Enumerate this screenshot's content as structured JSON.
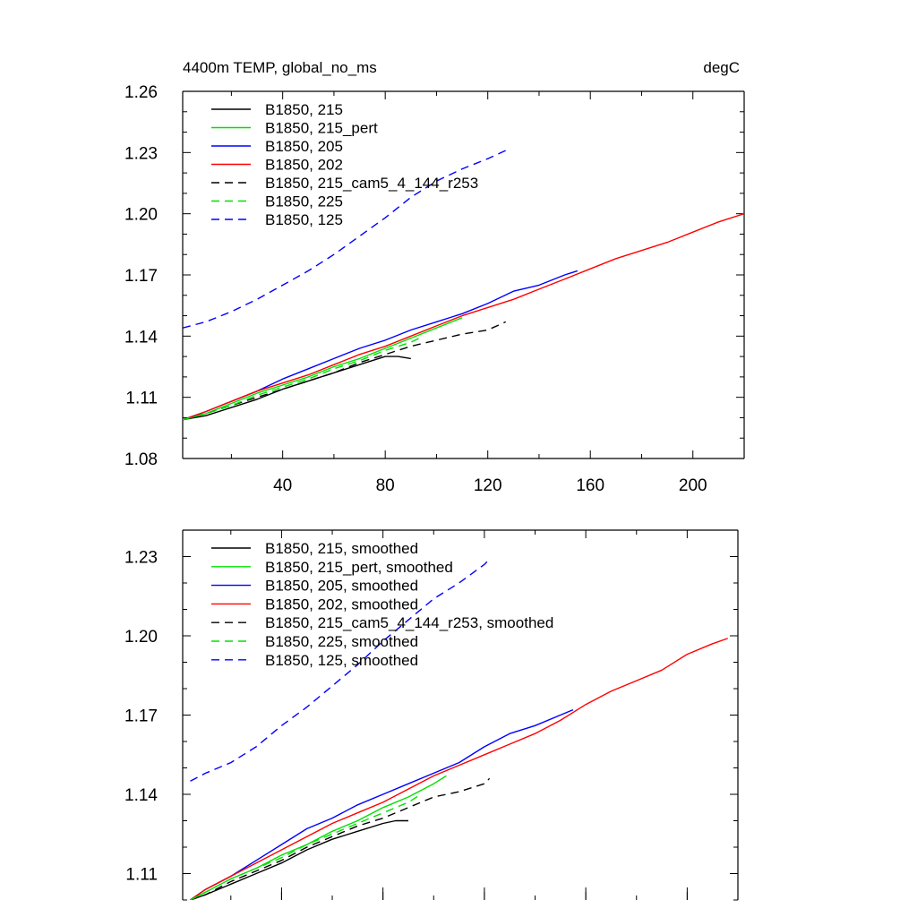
{
  "chart_data": [
    {
      "type": "line",
      "left_title": "4400m TEMP, global_no_ms",
      "right_title": "degC",
      "xlim": [
        1,
        220
      ],
      "ylim": [
        1.08,
        1.26
      ],
      "xticks": [
        40,
        80,
        120,
        160,
        200
      ],
      "xtick_labels": [
        "40",
        "80",
        "120",
        "160",
        "200"
      ],
      "yticks": [
        1.08,
        1.11,
        1.14,
        1.17,
        1.2,
        1.23,
        1.26
      ],
      "ytick_labels": [
        "1.08",
        "1.11",
        "1.14",
        "1.17",
        "1.20",
        "1.23",
        "1.26"
      ],
      "legend_position": "top-left",
      "series": [
        {
          "name": "B1850, 215",
          "color": "#000000",
          "dash": "solid",
          "x": [
            1,
            10,
            20,
            30,
            40,
            50,
            60,
            70,
            80,
            85,
            90
          ],
          "y": [
            1.099,
            1.101,
            1.105,
            1.109,
            1.114,
            1.118,
            1.122,
            1.126,
            1.13,
            1.13,
            1.129
          ]
        },
        {
          "name": "B1850, 215_pert",
          "color": "#00e000",
          "dash": "solid",
          "x": [
            1,
            10,
            20,
            30,
            40,
            50,
            60,
            70,
            80,
            90,
            100,
            110
          ],
          "y": [
            1.099,
            1.102,
            1.107,
            1.112,
            1.116,
            1.12,
            1.125,
            1.129,
            1.134,
            1.139,
            1.144,
            1.149
          ]
        },
        {
          "name": "B1850, 205",
          "color": "#0000ff",
          "dash": "solid",
          "x": [
            1,
            10,
            20,
            30,
            40,
            50,
            60,
            70,
            80,
            90,
            100,
            110,
            120,
            130,
            140,
            150,
            155
          ],
          "y": [
            1.099,
            1.103,
            1.108,
            1.113,
            1.119,
            1.124,
            1.129,
            1.134,
            1.138,
            1.143,
            1.147,
            1.151,
            1.156,
            1.162,
            1.165,
            1.17,
            1.172
          ]
        },
        {
          "name": "B1850, 202",
          "color": "#ff0000",
          "dash": "solid",
          "x": [
            1,
            10,
            20,
            30,
            40,
            50,
            60,
            70,
            80,
            90,
            100,
            110,
            120,
            130,
            140,
            150,
            160,
            170,
            180,
            190,
            200,
            210,
            220
          ],
          "y": [
            1.099,
            1.103,
            1.108,
            1.113,
            1.117,
            1.121,
            1.126,
            1.131,
            1.135,
            1.14,
            1.145,
            1.15,
            1.154,
            1.158,
            1.163,
            1.168,
            1.173,
            1.178,
            1.182,
            1.186,
            1.191,
            1.196,
            1.2
          ]
        },
        {
          "name": "B1850, 215_cam5_4_144_r253",
          "color": "#000000",
          "dash": "dashed",
          "x": [
            1,
            10,
            20,
            30,
            40,
            50,
            60,
            70,
            80,
            90,
            100,
            110,
            120,
            127
          ],
          "y": [
            1.099,
            1.102,
            1.106,
            1.11,
            1.114,
            1.118,
            1.122,
            1.127,
            1.131,
            1.135,
            1.138,
            1.141,
            1.143,
            1.147
          ]
        },
        {
          "name": "B1850, 225",
          "color": "#00e000",
          "dash": "dashed",
          "x": [
            1,
            10,
            20,
            30,
            40,
            50,
            60,
            70,
            80,
            90,
            95
          ],
          "y": [
            1.099,
            1.102,
            1.106,
            1.111,
            1.115,
            1.119,
            1.124,
            1.128,
            1.133,
            1.137,
            1.14
          ]
        },
        {
          "name": "B1850, 125",
          "color": "#0000ff",
          "dash": "dashed",
          "x": [
            1,
            10,
            20,
            30,
            40,
            50,
            60,
            70,
            80,
            90,
            100,
            110,
            120,
            127
          ],
          "y": [
            1.144,
            1.147,
            1.152,
            1.158,
            1.165,
            1.172,
            1.18,
            1.189,
            1.198,
            1.208,
            1.216,
            1.222,
            1.227,
            1.231
          ]
        }
      ]
    },
    {
      "type": "line",
      "xlim": [
        1,
        220
      ],
      "ylim": [
        1.1,
        1.24
      ],
      "xticks": [
        40,
        80,
        120,
        160,
        200
      ],
      "xtick_labels": [],
      "yticks": [
        1.11,
        1.14,
        1.17,
        1.2,
        1.23
      ],
      "ytick_labels": [
        "1.11",
        "1.14",
        "1.17",
        "1.20",
        "1.23"
      ],
      "legend_position": "top-left",
      "series": [
        {
          "name": "B1850, 215, smoothed",
          "color": "#000000",
          "dash": "solid",
          "x": [
            4,
            10,
            20,
            30,
            40,
            50,
            60,
            70,
            80,
            85,
            90
          ],
          "y": [
            1.1,
            1.102,
            1.106,
            1.11,
            1.114,
            1.119,
            1.123,
            1.126,
            1.129,
            1.13,
            1.13
          ]
        },
        {
          "name": "B1850, 215_pert, smoothed",
          "color": "#00e000",
          "dash": "solid",
          "x": [
            4,
            10,
            20,
            30,
            40,
            50,
            60,
            70,
            80,
            90,
            100,
            105
          ],
          "y": [
            1.1,
            1.103,
            1.108,
            1.112,
            1.117,
            1.121,
            1.126,
            1.13,
            1.135,
            1.139,
            1.144,
            1.147
          ]
        },
        {
          "name": "B1850, 205, smoothed",
          "color": "#0000ff",
          "dash": "solid",
          "x": [
            4,
            10,
            20,
            30,
            40,
            50,
            60,
            70,
            80,
            90,
            100,
            110,
            120,
            130,
            140,
            150,
            155
          ],
          "y": [
            1.1,
            1.104,
            1.109,
            1.115,
            1.121,
            1.127,
            1.131,
            1.136,
            1.14,
            1.144,
            1.148,
            1.152,
            1.158,
            1.163,
            1.166,
            1.17,
            1.172
          ]
        },
        {
          "name": "B1850, 202, smoothed",
          "color": "#ff0000",
          "dash": "solid",
          "x": [
            4,
            10,
            20,
            30,
            40,
            50,
            60,
            70,
            80,
            90,
            100,
            110,
            120,
            130,
            140,
            150,
            160,
            170,
            180,
            190,
            200,
            210,
            216
          ],
          "y": [
            1.1,
            1.104,
            1.109,
            1.114,
            1.119,
            1.124,
            1.129,
            1.133,
            1.137,
            1.142,
            1.147,
            1.151,
            1.155,
            1.159,
            1.163,
            1.168,
            1.174,
            1.179,
            1.183,
            1.187,
            1.193,
            1.197,
            1.199
          ]
        },
        {
          "name": "B1850, 215_cam5_4_144_r253, smoothed",
          "color": "#000000",
          "dash": "dashed",
          "x": [
            4,
            10,
            20,
            30,
            40,
            50,
            60,
            70,
            80,
            90,
            100,
            110,
            120,
            122
          ],
          "y": [
            1.1,
            1.102,
            1.107,
            1.111,
            1.115,
            1.12,
            1.124,
            1.128,
            1.131,
            1.135,
            1.139,
            1.141,
            1.144,
            1.146
          ]
        },
        {
          "name": "B1850, 225, smoothed",
          "color": "#00e000",
          "dash": "dashed",
          "x": [
            4,
            10,
            20,
            30,
            40,
            50,
            60,
            70,
            80,
            90,
            95
          ],
          "y": [
            1.1,
            1.103,
            1.108,
            1.112,
            1.116,
            1.121,
            1.125,
            1.129,
            1.133,
            1.137,
            1.14
          ]
        },
        {
          "name": "B1850, 125, smoothed",
          "color": "#0000ff",
          "dash": "dashed",
          "x": [
            4,
            10,
            20,
            30,
            40,
            50,
            60,
            70,
            80,
            90,
            100,
            110,
            120,
            122
          ],
          "y": [
            1.145,
            1.148,
            1.152,
            1.158,
            1.166,
            1.173,
            1.181,
            1.189,
            1.198,
            1.206,
            1.214,
            1.22,
            1.227,
            1.229
          ]
        }
      ]
    }
  ]
}
